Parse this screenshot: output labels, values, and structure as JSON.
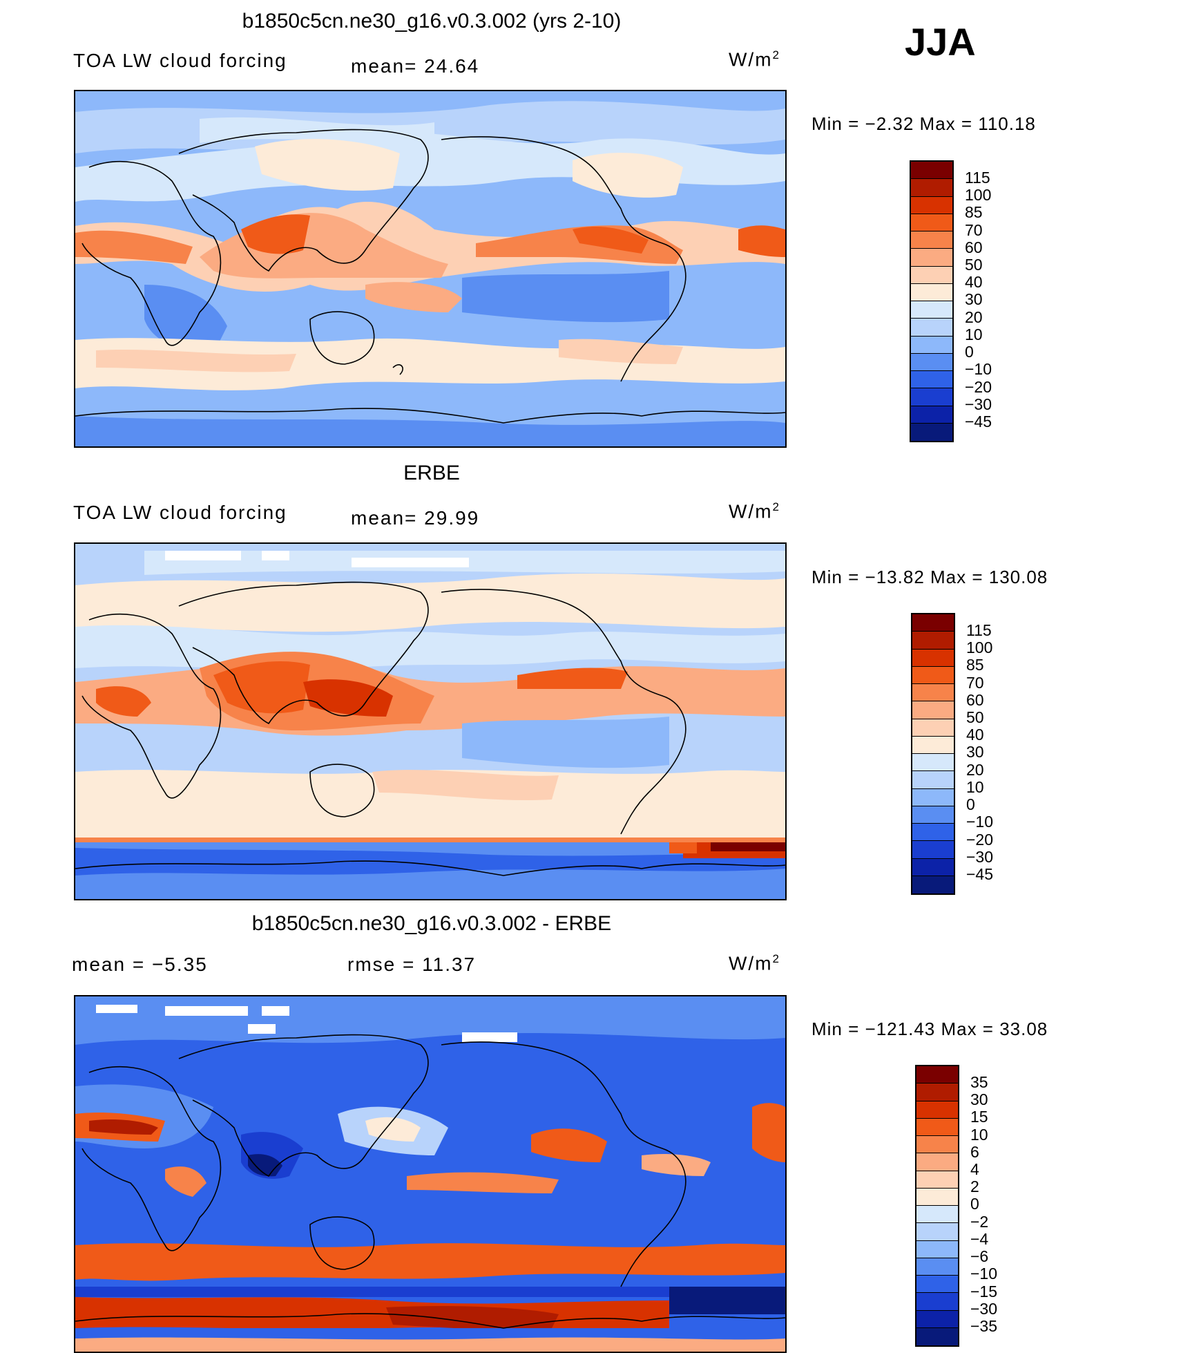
{
  "season": "JJA",
  "panels": [
    {
      "title": "b1850c5cn.ne30_g16.v0.3.002 (yrs 2-10)",
      "left_label": "TOA LW cloud forcing",
      "center_label": "mean=  24.64",
      "units": "W/m",
      "units_sup": "2",
      "minmax": "Min =   −2.32 Max = 110.18",
      "colorbar_ticks": [
        "115",
        "100",
        "85",
        "70",
        "60",
        "50",
        "40",
        "30",
        "20",
        "10",
        "0",
        "−10",
        "−20",
        "−30",
        "−45"
      ],
      "colorbar_colors": [
        "#7a0000",
        "#b01c00",
        "#d83200",
        "#f05a18",
        "#f7834a",
        "#fbab82",
        "#fdd0b4",
        "#fdebd8",
        "#d6e8fb",
        "#b8d3fb",
        "#8db8fa",
        "#5a8ef2",
        "#2f62e8",
        "#1a3ed0",
        "#0c22a8",
        "#081a7a"
      ]
    },
    {
      "title": "ERBE",
      "left_label": "TOA LW cloud forcing",
      "center_label": "mean=  29.99",
      "units": "W/m",
      "units_sup": "2",
      "minmax": "Min = −13.82 Max = 130.08",
      "colorbar_ticks": [
        "115",
        "100",
        "85",
        "70",
        "60",
        "50",
        "40",
        "30",
        "20",
        "10",
        "0",
        "−10",
        "−20",
        "−30",
        "−45"
      ],
      "colorbar_colors": [
        "#7a0000",
        "#b01c00",
        "#d83200",
        "#f05a18",
        "#f7834a",
        "#fbab82",
        "#fdd0b4",
        "#fdebd8",
        "#d6e8fb",
        "#b8d3fb",
        "#8db8fa",
        "#5a8ef2",
        "#2f62e8",
        "#1a3ed0",
        "#0c22a8",
        "#081a7a"
      ]
    },
    {
      "title": "b1850c5cn.ne30_g16.v0.3.002 - ERBE",
      "left_label": "mean =   −5.35",
      "center_label": "rmse =   11.37",
      "units": "W/m",
      "units_sup": "2",
      "minmax": "Min = −121.43 Max =   33.08",
      "colorbar_ticks": [
        "35",
        "30",
        "15",
        "10",
        "6",
        "4",
        "2",
        "0",
        "−2",
        "−4",
        "−6",
        "−10",
        "−15",
        "−30",
        "−35"
      ],
      "colorbar_colors": [
        "#7a0000",
        "#b01c00",
        "#d83200",
        "#f05a18",
        "#f7834a",
        "#fbab82",
        "#fdd0b4",
        "#fdebd8",
        "#d6e8fb",
        "#b8d3fb",
        "#8db8fa",
        "#5a8ef2",
        "#2f62e8",
        "#1a3ed0",
        "#0c22a8",
        "#081a7a"
      ]
    }
  ]
}
